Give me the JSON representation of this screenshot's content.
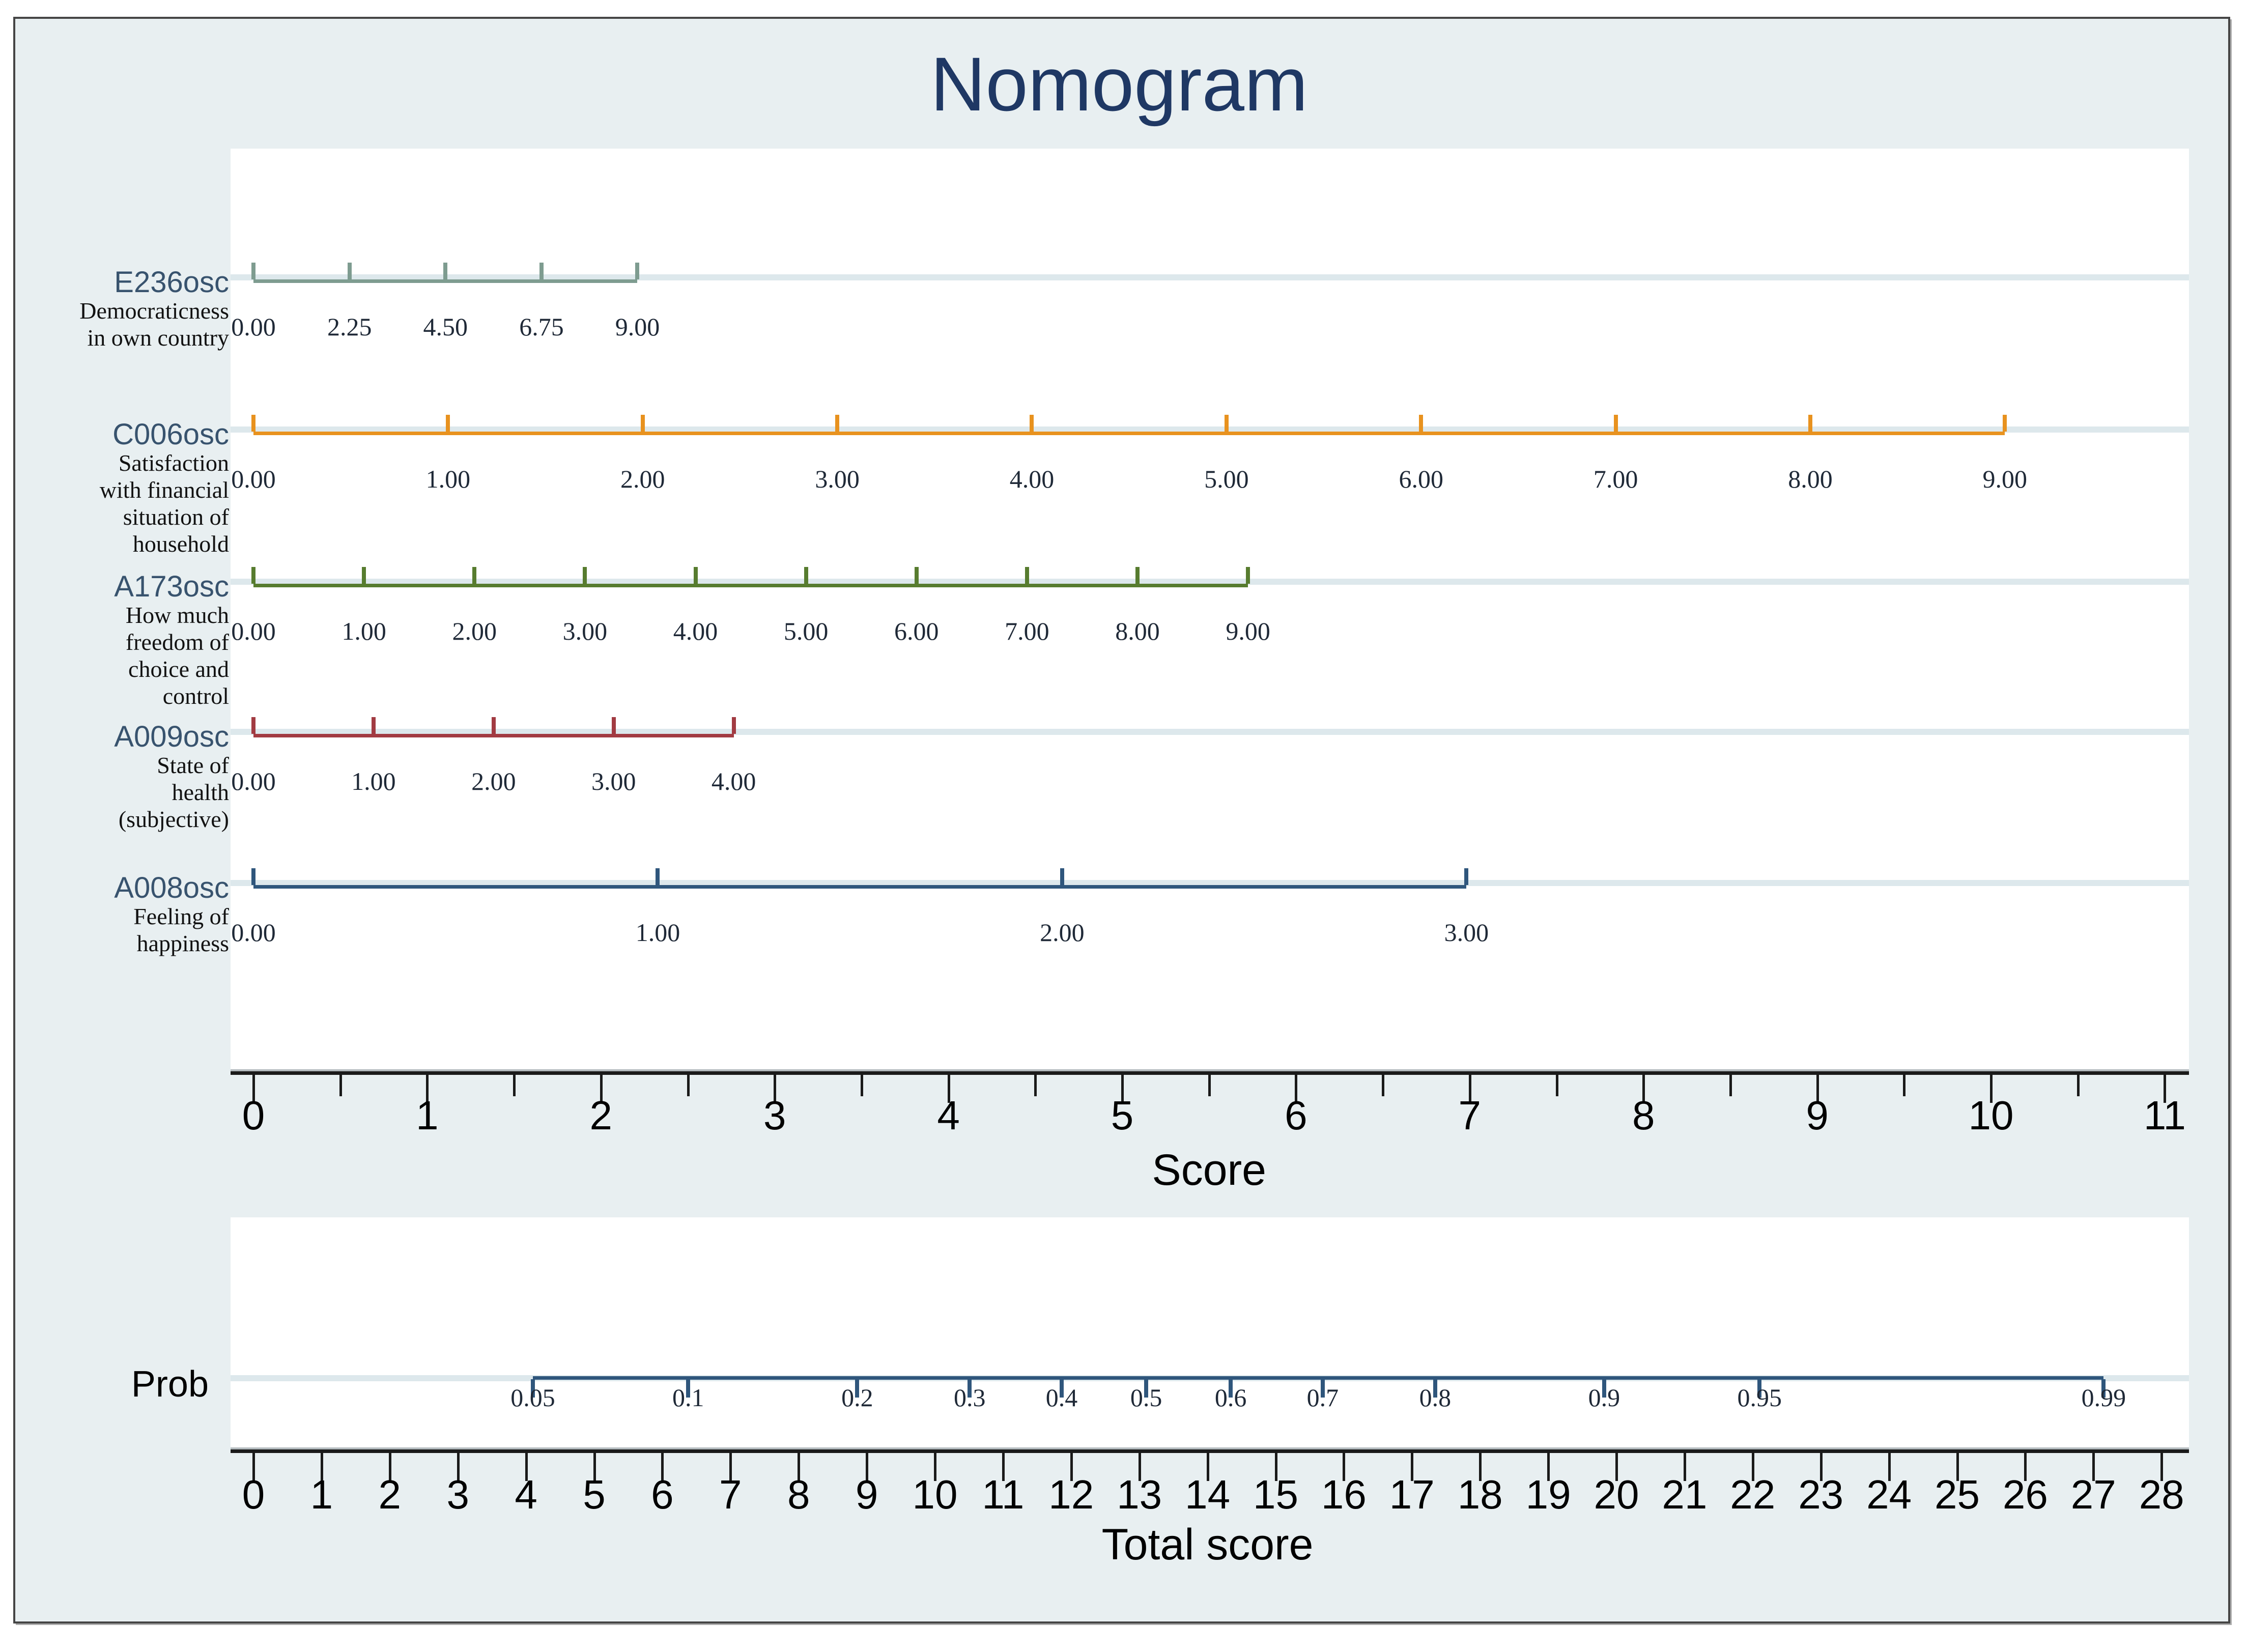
{
  "title": "Nomogram",
  "colors": {
    "figure_background": "#e8eff1",
    "plot_background": "#ffffff",
    "figure_border": "#454545",
    "title_text": "#1f3864",
    "predictor_name_text": "#38536e",
    "axis_line": "#1a1a1a",
    "gridline_band": "#dde8ec"
  },
  "chart_data": {
    "type": "nomogram",
    "title": "Nomogram",
    "score_axis": {
      "label": "Score",
      "min": 0,
      "max": 11,
      "tick_step": 1,
      "minor_tick_step": 0.5
    },
    "total_score_axis": {
      "label": "Total score",
      "min": 0,
      "max": 28,
      "tick_step": 1
    },
    "predictors": [
      {
        "id": "E236osc",
        "description": "Democraticness in own country",
        "desc_lines": [
          "Democraticness",
          "in own country"
        ],
        "color": "#7e9c90",
        "tick_labels": [
          "0.00",
          "2.25",
          "4.50",
          "6.75",
          "9.00"
        ],
        "tick_scores": [
          0,
          0.553,
          1.105,
          1.658,
          2.21
        ],
        "score_range": [
          0,
          2.21
        ]
      },
      {
        "id": "C006osc",
        "description": "Satisfaction with financial situation of household",
        "desc_lines": [
          "Satisfaction",
          "with financial",
          "situation of",
          "household"
        ],
        "color": "#e8921f",
        "tick_labels": [
          "0.00",
          "1.00",
          "2.00",
          "3.00",
          "4.00",
          "5.00",
          "6.00",
          "7.00",
          "8.00",
          "9.00"
        ],
        "tick_scores": [
          0,
          1.12,
          2.24,
          3.36,
          4.48,
          5.6,
          6.72,
          7.84,
          8.96,
          10.08
        ],
        "score_range": [
          0,
          10.08
        ]
      },
      {
        "id": "A173osc",
        "description": "How much freedom of choice and control",
        "desc_lines": [
          "How much",
          "freedom of",
          "choice and",
          "control"
        ],
        "color": "#577c2f",
        "tick_labels": [
          "0.00",
          "1.00",
          "2.00",
          "3.00",
          "4.00",
          "5.00",
          "6.00",
          "7.00",
          "8.00",
          "9.00"
        ],
        "tick_scores": [
          0,
          0.636,
          1.272,
          1.908,
          2.544,
          3.18,
          3.816,
          4.452,
          5.088,
          5.724
        ],
        "score_range": [
          0,
          5.724
        ]
      },
      {
        "id": "A009osc",
        "description": "State of health (subjective)",
        "desc_lines": [
          "State of",
          "health",
          "(subjective)"
        ],
        "color": "#a23b42",
        "tick_labels": [
          "0.00",
          "1.00",
          "2.00",
          "3.00",
          "4.00"
        ],
        "tick_scores": [
          0,
          0.691,
          1.382,
          2.073,
          2.764
        ],
        "score_range": [
          0,
          2.764
        ]
      },
      {
        "id": "A008osc",
        "description": "Feeling of happiness",
        "desc_lines": [
          "Feeling of",
          "happiness"
        ],
        "color": "#2f567c",
        "tick_labels": [
          "0.00",
          "1.00",
          "2.00",
          "3.00"
        ],
        "tick_scores": [
          0,
          2.327,
          4.654,
          6.981
        ],
        "score_range": [
          0,
          6.981
        ]
      }
    ],
    "probability_scale": {
      "label": "Prob",
      "color": "#2f567c",
      "tick_labels": [
        "0.05",
        "0.1",
        "0.2",
        "0.3",
        "0.4",
        "0.5",
        "0.6",
        "0.7",
        "0.8",
        "0.9",
        "0.95",
        "0.99"
      ],
      "tick_total_scores": [
        4.1,
        6.38,
        8.86,
        10.51,
        11.86,
        13.1,
        14.34,
        15.69,
        17.34,
        19.82,
        22.1,
        27.15
      ],
      "range_total_score": [
        4.1,
        27.15
      ]
    }
  }
}
